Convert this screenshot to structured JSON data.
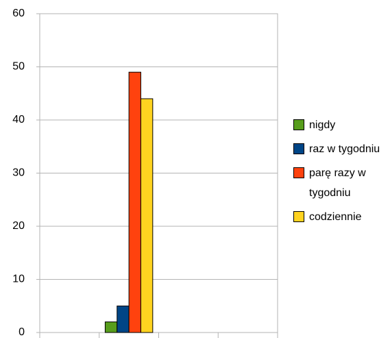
{
  "chart_data": {
    "type": "bar",
    "categories": [
      null,
      null,
      null,
      null
    ],
    "series": [
      {
        "name": "nigdy",
        "color": "#579d1c",
        "values": [
          null,
          2,
          null,
          null
        ]
      },
      {
        "name": "raz w tygodniu",
        "color": "#004586",
        "values": [
          null,
          5,
          null,
          null
        ]
      },
      {
        "name": "parę razy w tygodniu",
        "color": "#ff420e",
        "values": [
          null,
          49,
          null,
          null
        ]
      },
      {
        "name": "codziennie",
        "color": "#ffd320",
        "values": [
          null,
          44,
          null,
          null
        ]
      }
    ],
    "ylim": [
      0,
      60
    ],
    "yticks": [
      0,
      10,
      20,
      30,
      40,
      50,
      60
    ],
    "grid": true,
    "legend": "right"
  }
}
